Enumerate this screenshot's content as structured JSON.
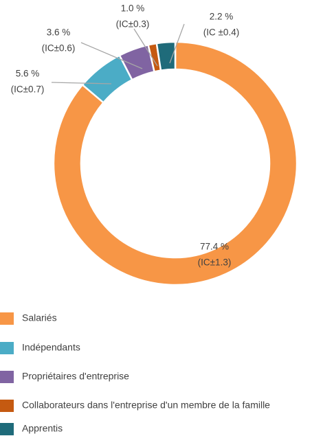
{
  "chart_data": {
    "type": "donut",
    "categories": [
      "Salariés",
      "Indépendants",
      "Propriétaires d'entreprise",
      "Collaborateurs dans l'entreprise d'un membre de la famille",
      "Apprentis"
    ],
    "values": [
      77.4,
      5.6,
      3.6,
      1.0,
      2.2
    ],
    "value_labels": [
      "77.4 %",
      "5.6 %",
      "3.6 %",
      "1.0 %",
      "2.2 %"
    ],
    "ci_labels": [
      "(IC±1.3)",
      "(IC±0.7)",
      "(IC±0.6)",
      "(IC±0.3)",
      "(IC ±0.4)"
    ],
    "colors": [
      "#F79646",
      "#4BACC6",
      "#8064A2",
      "#C55A11",
      "#1F6B7A"
    ],
    "legend": "bottom-left"
  }
}
